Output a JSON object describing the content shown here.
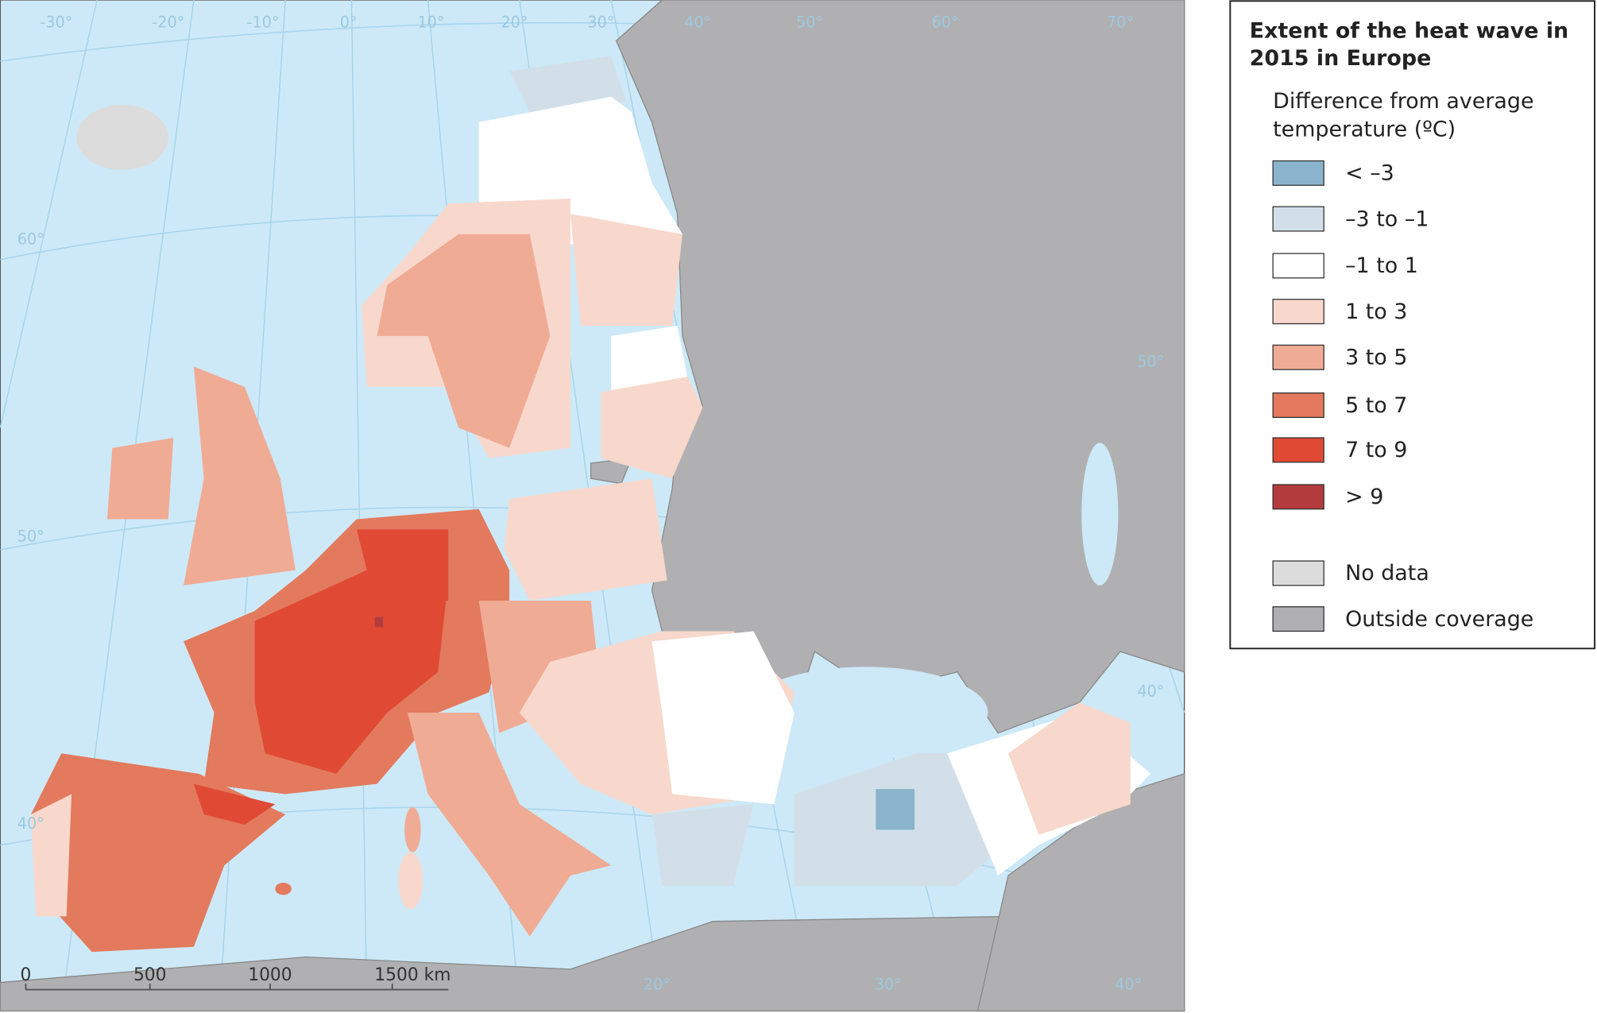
{
  "legend": {
    "title": [
      "Extent of the heat wave in",
      "2015 in Europe"
    ],
    "subtitle": [
      "Difference from average",
      "temperature (ºC)"
    ],
    "items": [
      {
        "label": "< –3",
        "color": "#8ab4cc"
      },
      {
        "label": "–3 to –1",
        "color": "#d2dfe9"
      },
      {
        "label": "–1 to 1",
        "color": "#ffffff"
      },
      {
        "label": "1 to 3",
        "color": "#f8d8cc"
      },
      {
        "label": "3 to 5",
        "color": "#f0ab95"
      },
      {
        "label": "5 to 7",
        "color": "#e37a5d"
      },
      {
        "label": "7 to 9",
        "color": "#e04a35"
      },
      {
        "label": "> 9",
        "color": "#b33b3e"
      },
      {
        "label": "No data",
        "color": "#dcdcdc"
      },
      {
        "label": "Outside coverage",
        "color": "#b0b0b2"
      }
    ]
  },
  "graticule_labels": {
    "top": [
      "-30°",
      "-20°",
      "-10°",
      "0°",
      "10°",
      "20°",
      "30°",
      "40°",
      "50°",
      "60°",
      "70°"
    ],
    "left": [
      "60°",
      "50°",
      "40°"
    ],
    "bottom": [
      "20°",
      "30°",
      "40°"
    ],
    "right": [
      "50°",
      "40°"
    ]
  },
  "scale_bar": [
    "0",
    "500",
    "1000",
    "1500 km"
  ]
}
